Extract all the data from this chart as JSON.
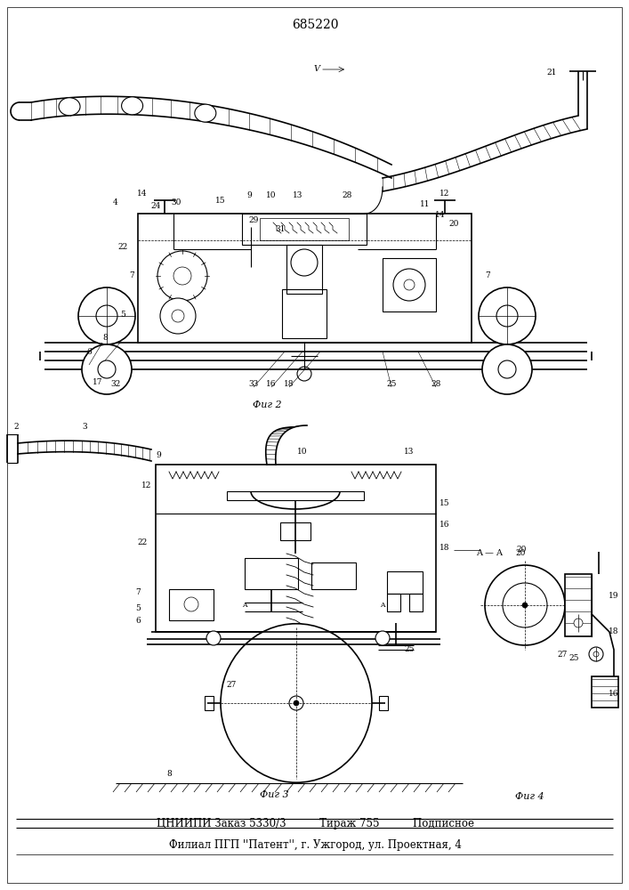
{
  "title": "685220",
  "footer_line1": "ЦНИИПИ Заказ 5330/3          Тираж 755          Подписное",
  "footer_line2": "Филиал ПГП ''Патент'', г. Ужгород, ул. Проектная, 4",
  "fig2_label": "Фиг 2",
  "fig3_label": "Фиг 3",
  "fig4_label": "Фиг 4",
  "bg_color": "#ffffff",
  "line_color": "#000000"
}
